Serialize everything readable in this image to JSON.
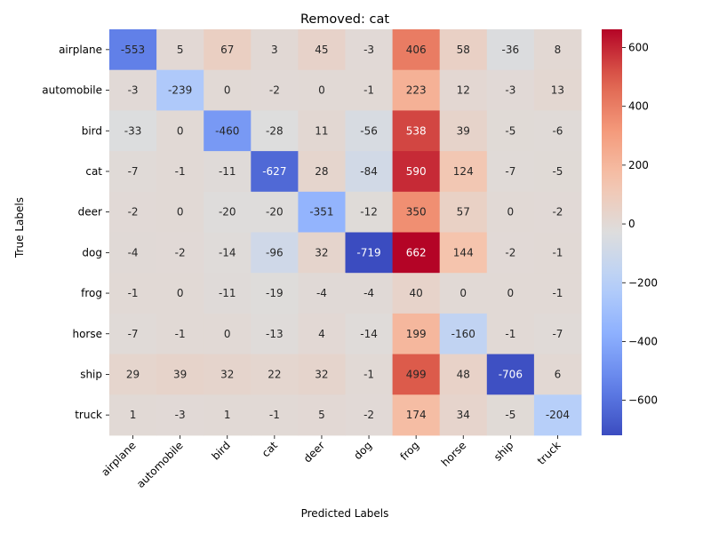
{
  "chart_data": {
    "type": "heatmap",
    "title": "Removed: cat",
    "xlabel": "Predicted Labels",
    "ylabel": "True Labels",
    "x_categories": [
      "airplane",
      "automobile",
      "bird",
      "cat",
      "deer",
      "dog",
      "frog",
      "horse",
      "ship",
      "truck"
    ],
    "y_categories": [
      "airplane",
      "automobile",
      "bird",
      "cat",
      "deer",
      "dog",
      "frog",
      "horse",
      "ship",
      "truck"
    ],
    "values": [
      [
        -553,
        5,
        67,
        3,
        45,
        -3,
        406,
        58,
        -36,
        8
      ],
      [
        -3,
        -239,
        0,
        -2,
        0,
        -1,
        223,
        12,
        -3,
        13
      ],
      [
        -33,
        0,
        -460,
        -28,
        11,
        -56,
        538,
        39,
        -5,
        -6
      ],
      [
        -7,
        -1,
        -11,
        -627,
        28,
        -84,
        590,
        124,
        -7,
        -5
      ],
      [
        -2,
        0,
        -20,
        -20,
        -351,
        -12,
        350,
        57,
        0,
        -2
      ],
      [
        -4,
        -2,
        -14,
        -96,
        32,
        -719,
        662,
        144,
        -2,
        -1
      ],
      [
        -1,
        0,
        -11,
        -19,
        -4,
        -4,
        40,
        0,
        0,
        -1
      ],
      [
        -7,
        -1,
        0,
        -13,
        4,
        -14,
        199,
        -160,
        -1,
        -7
      ],
      [
        29,
        39,
        32,
        22,
        32,
        -1,
        499,
        48,
        -706,
        6
      ],
      [
        1,
        -3,
        1,
        -1,
        5,
        -2,
        174,
        34,
        -5,
        -204
      ]
    ],
    "colorscale": "coolwarm",
    "vmin": -719,
    "vmax": 662,
    "colorbar_ticks": [
      -600,
      -400,
      -200,
      0,
      200,
      400,
      600
    ],
    "colorbar_tick_labels": [
      "−600",
      "−400",
      "−200",
      "0",
      "200",
      "400",
      "600"
    ]
  }
}
